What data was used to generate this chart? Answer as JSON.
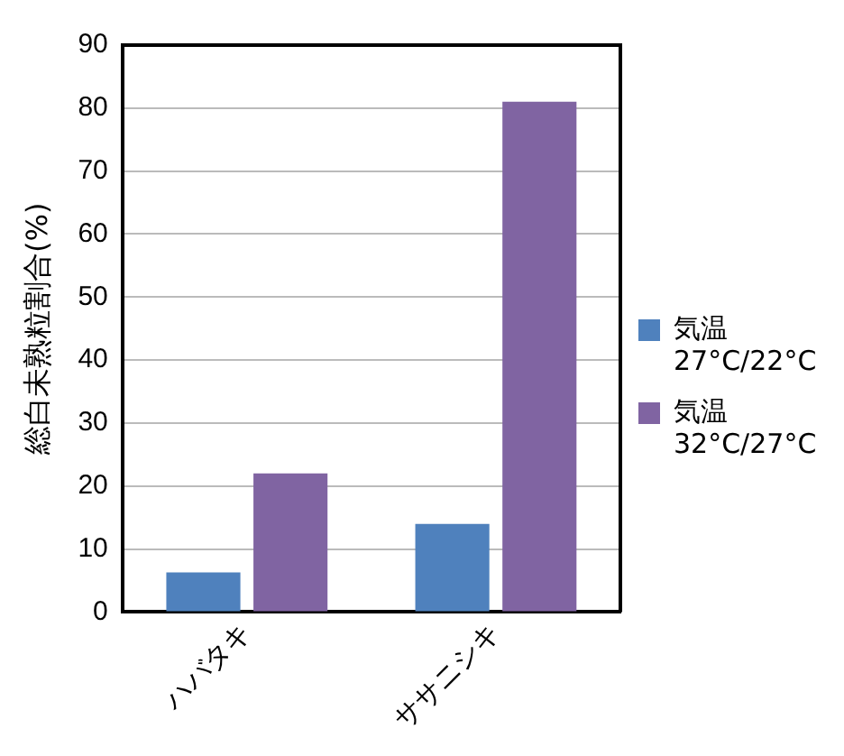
{
  "chart_data": {
    "type": "bar",
    "ylabel": "総白未熟粒割合(%)",
    "categories": [
      "ハバタキ",
      "ササニシキ"
    ],
    "series": [
      {
        "name": "気温 27°C/22°C",
        "color": "#4f81bd",
        "values": [
          6.3,
          14
        ]
      },
      {
        "name": "気温 32°C/27°C",
        "color": "#8064a2",
        "values": [
          22,
          81
        ]
      }
    ],
    "ylim": [
      0,
      90
    ],
    "yticks": [
      0,
      10,
      20,
      30,
      40,
      50,
      60,
      70,
      80,
      90
    ],
    "grid": "y",
    "legend": "right"
  }
}
